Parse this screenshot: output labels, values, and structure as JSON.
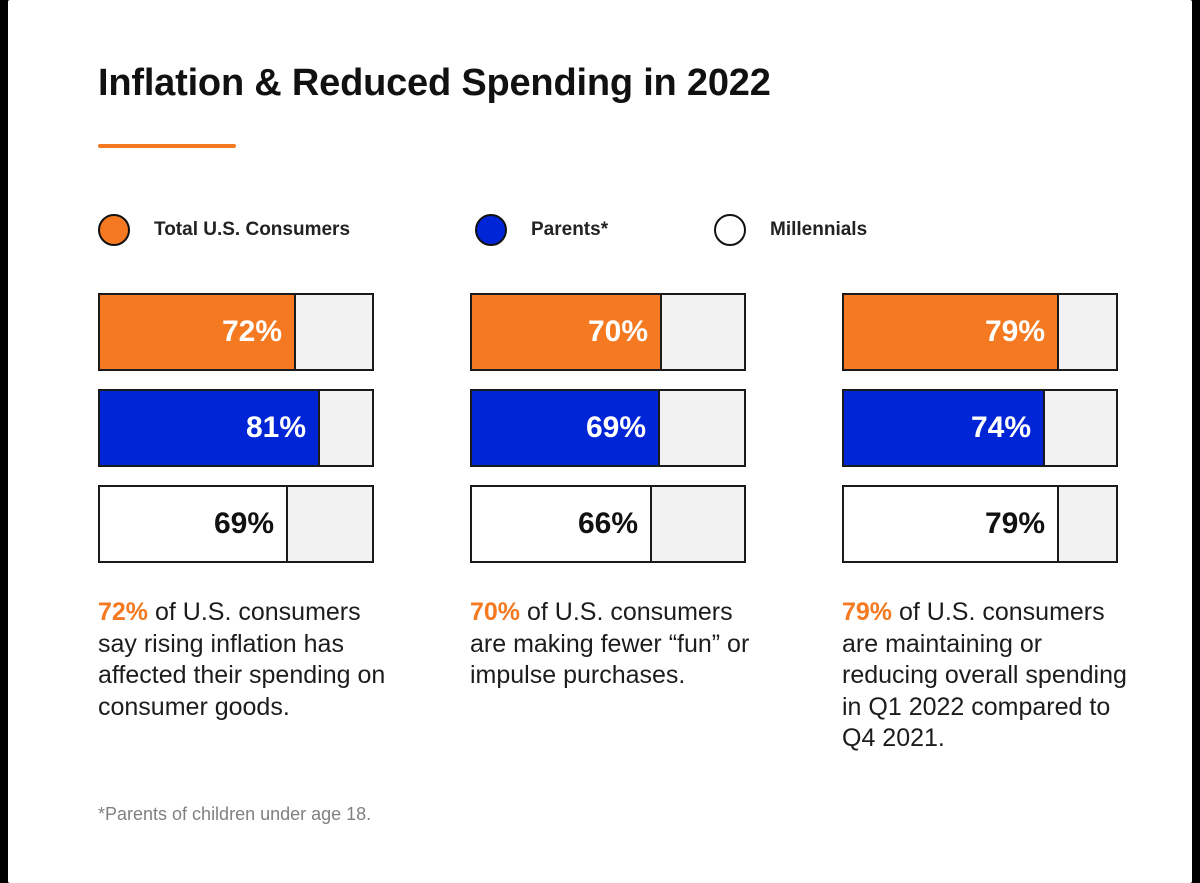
{
  "title": "Inflation & Reduced Spending in 2022",
  "colors": {
    "accent": "#f47920",
    "total": "#f47920",
    "parents": "#0025d6",
    "millennials": "#ffffff",
    "empty": "#f2f2f2"
  },
  "chart_data": {
    "type": "bar",
    "orientation": "horizontal",
    "title": "Inflation & Reduced Spending in 2022",
    "xlim": [
      0,
      100
    ],
    "unit": "%",
    "legend": [
      {
        "name": "Total U.S. Consumers",
        "color": "#f47920"
      },
      {
        "name": "Parents*",
        "color": "#0025d6"
      },
      {
        "name": "Millennials",
        "color": "#ffffff"
      }
    ],
    "groups": [
      {
        "values": [
          72,
          81,
          69
        ],
        "labels": [
          "72%",
          "81%",
          "69%"
        ],
        "highlight": "72%",
        "description": " of U.S. consumers say rising inflation has affected their spending on consumer goods."
      },
      {
        "values": [
          70,
          69,
          66
        ],
        "labels": [
          "70%",
          "69%",
          "66%"
        ],
        "highlight": "70%",
        "description": " of U.S. consumers are making fewer “fun” or impulse purchases."
      },
      {
        "values": [
          79,
          74,
          79
        ],
        "labels": [
          "79%",
          "74%",
          "79%"
        ],
        "highlight": "79%",
        "description": " of U.S. consumers are maintaining or reducing overall spending in Q1 2022 compared to Q4 2021."
      }
    ]
  },
  "footnote": "*Parents of children under age 18."
}
